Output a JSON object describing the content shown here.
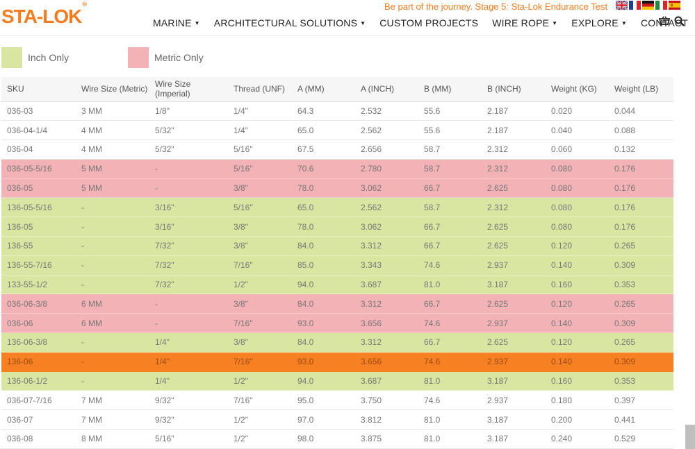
{
  "brand": {
    "name": "STA-LOK",
    "reg": "®"
  },
  "promo": "Be part of the journey. Stage 5: Sta-Lok Endurance Test",
  "flags": [
    "uk-flag-icon",
    "france-flag-icon",
    "germany-flag-icon",
    "italy-flag-icon",
    "spain-flag-icon"
  ],
  "nav": {
    "items": [
      {
        "label": "MARINE",
        "dropdown": true
      },
      {
        "label": "ARCHITECTURAL SOLUTIONS",
        "dropdown": true
      },
      {
        "label": "CUSTOM PROJECTS",
        "dropdown": false
      },
      {
        "label": "WIRE ROPE",
        "dropdown": true
      },
      {
        "label": "EXPLORE",
        "dropdown": true
      },
      {
        "label": "CONTACT",
        "dropdown": false
      }
    ],
    "caret": "▼",
    "cart_icon": "basket-icon",
    "search_icon": "search-icon"
  },
  "legend": {
    "inch": {
      "label": "Inch Only",
      "color": "#d9e6a1"
    },
    "metric": {
      "label": "Metric Only",
      "color": "#f3b2b6"
    }
  },
  "colors": {
    "accent": "#f57c1f",
    "highlight_row": "#f78023"
  },
  "table": {
    "headers": [
      "SKU",
      "Wire Size (Metric)",
      "Wire Size (Imperial)",
      "Thread (UNF)",
      "A (MM)",
      "A (INCH)",
      "B (MM)",
      "B (INCH)",
      "Weight (KG)",
      "Weight (LB)"
    ],
    "rows": [
      {
        "type": "plain",
        "cells": [
          "036-03",
          "3 MM",
          "1/8\"",
          "1/4\"",
          "64.3",
          "2.532",
          "55.6",
          "2.187",
          "0.020",
          "0.044"
        ]
      },
      {
        "type": "plain",
        "cells": [
          "036-04-1/4",
          "4 MM",
          "5/32\"",
          "1/4\"",
          "65.0",
          "2.562",
          "55.6",
          "2.187",
          "0.040",
          "0.088"
        ]
      },
      {
        "type": "plain",
        "cells": [
          "036-04",
          "4 MM",
          "5/32\"",
          "5/16\"",
          "67.5",
          "2.656",
          "58.7",
          "2.312",
          "0.060",
          "0.132"
        ]
      },
      {
        "type": "metric",
        "cells": [
          "036-05-5/16",
          "5 MM",
          "-",
          "5/16\"",
          "70.6",
          "2.780",
          "58.7",
          "2.312",
          "0.080",
          "0.176"
        ]
      },
      {
        "type": "metric",
        "cells": [
          "036-05",
          "5 MM",
          "-",
          "3/8\"",
          "78.0",
          "3.062",
          "66.7",
          "2.625",
          "0.080",
          "0.176"
        ]
      },
      {
        "type": "inch",
        "cells": [
          "136-05-5/16",
          "-",
          "3/16\"",
          "5/16\"",
          "65.0",
          "2.562",
          "58.7",
          "2.312",
          "0.080",
          "0.176"
        ]
      },
      {
        "type": "inch",
        "cells": [
          "136-05",
          "-",
          "3/16\"",
          "3/8\"",
          "78.0",
          "3.062",
          "66.7",
          "2.625",
          "0.080",
          "0.176"
        ]
      },
      {
        "type": "inch",
        "cells": [
          "136-55",
          "-",
          "7/32\"",
          "3/8\"",
          "84.0",
          "3.312",
          "66.7",
          "2.625",
          "0.120",
          "0.265"
        ]
      },
      {
        "type": "inch",
        "cells": [
          "136-55-7/16",
          "-",
          "7/32\"",
          "7/16\"",
          "85.0",
          "3.343",
          "74.6",
          "2.937",
          "0.140",
          "0.309"
        ]
      },
      {
        "type": "inch",
        "cells": [
          "133-55-1/2",
          "-",
          "7/32\"",
          "1/2\"",
          "94.0",
          "3.687",
          "81.0",
          "3.187",
          "0.160",
          "0.353"
        ]
      },
      {
        "type": "metric",
        "cells": [
          "036-06-3/8",
          "6 MM",
          "-",
          "3/8\"",
          "84.0",
          "3.312",
          "66.7",
          "2.625",
          "0.120",
          "0.265"
        ]
      },
      {
        "type": "metric",
        "cells": [
          "036-06",
          "6 MM",
          "-",
          "7/16\"",
          "93.0",
          "3.656",
          "74.6",
          "2.937",
          "0.140",
          "0.309"
        ]
      },
      {
        "type": "inch",
        "cells": [
          "136-06-3/8",
          "-",
          "1/4\"",
          "3/8\"",
          "84.0",
          "3.312",
          "66.7",
          "2.625",
          "0.120",
          "0.265"
        ]
      },
      {
        "type": "highlight",
        "cells": [
          "136-06",
          "-",
          "1/4\"",
          "7/16\"",
          "93.0",
          "3.656",
          "74.6",
          "2.937",
          "0.140",
          "0.309"
        ]
      },
      {
        "type": "inch",
        "cells": [
          "136-06-1/2",
          "-",
          "1/4\"",
          "1/2\"",
          "94.0",
          "3.687",
          "81.0",
          "3.187",
          "0.160",
          "0.353"
        ]
      },
      {
        "type": "plain",
        "cells": [
          "036-07-7/16",
          "7 MM",
          "9/32\"",
          "7/16\"",
          "95.0",
          "3.750",
          "74.6",
          "2.937",
          "0.180",
          "0.397"
        ]
      },
      {
        "type": "plain",
        "cells": [
          "036-07",
          "7 MM",
          "9/32\"",
          "1/2\"",
          "97.0",
          "3.812",
          "81.0",
          "3.187",
          "0.200",
          "0.441"
        ]
      },
      {
        "type": "plain",
        "cells": [
          "036-08",
          "8 MM",
          "5/16\"",
          "1/2\"",
          "98.0",
          "3.875",
          "81.0",
          "3.187",
          "0.240",
          "0.529"
        ]
      }
    ]
  }
}
